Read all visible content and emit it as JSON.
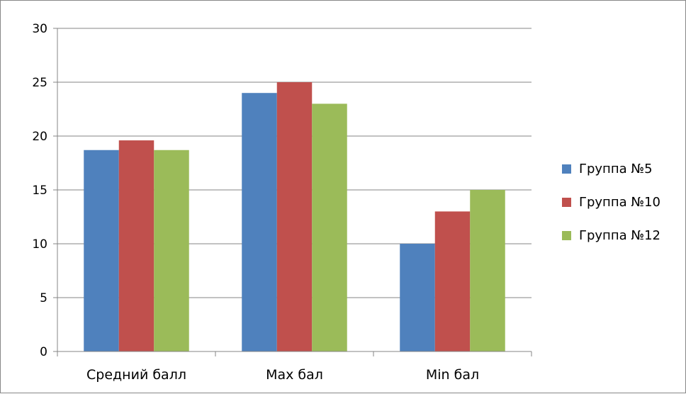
{
  "chart_data": {
    "type": "bar",
    "title": "",
    "xlabel": "",
    "ylabel": "",
    "categories": [
      "Средний балл",
      "Max бал",
      "Min бал"
    ],
    "series": [
      {
        "name": "Группа №5",
        "values": [
          18.7,
          24,
          10
        ],
        "color": "#4F81BD"
      },
      {
        "name": "Группа №10",
        "values": [
          19.6,
          25,
          13
        ],
        "color": "#C0504D"
      },
      {
        "name": "Группа №12",
        "values": [
          18.7,
          23,
          15
        ],
        "color": "#9BBB59"
      }
    ],
    "ylim": [
      0,
      30
    ],
    "yticks": [
      "0",
      "5",
      "10",
      "15",
      "20",
      "25",
      "30"
    ],
    "grid": true,
    "legend_position": "right"
  }
}
